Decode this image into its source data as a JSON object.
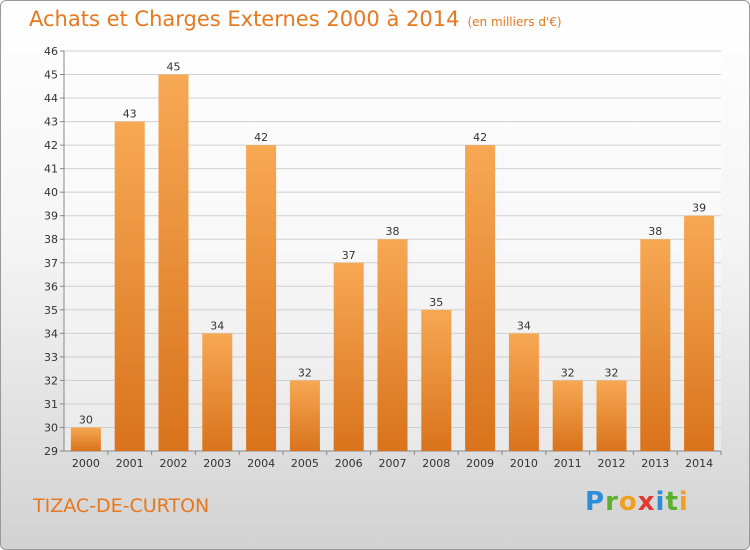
{
  "title": "Achats et Charges Externes 2000 à 2014",
  "unit_note": "(en milliers d'€)",
  "commune": "TIZAC-DE-CURTON",
  "brand": {
    "letters": [
      "P",
      "r",
      "o",
      "x",
      "i",
      "t",
      "i"
    ],
    "colors": [
      "#2a8fd8",
      "#5bb030",
      "#f0a020",
      "#e03a30",
      "#2a8fd8",
      "#5bb030",
      "#f0a020"
    ]
  },
  "colors": {
    "accent": "#e8781e",
    "bar_light": "#f7a853",
    "bar_dark": "#d9731c"
  },
  "chart_data": {
    "type": "bar",
    "categories": [
      "2000",
      "2001",
      "2002",
      "2003",
      "2004",
      "2005",
      "2006",
      "2007",
      "2008",
      "2009",
      "2010",
      "2011",
      "2012",
      "2013",
      "2014"
    ],
    "values": [
      30,
      43,
      45,
      34,
      42,
      32,
      37,
      38,
      35,
      42,
      34,
      32,
      32,
      38,
      39
    ],
    "yticks": [
      29,
      30,
      31,
      32,
      33,
      34,
      35,
      36,
      37,
      38,
      39,
      40,
      41,
      42,
      43,
      44,
      45,
      46
    ],
    "ylim": [
      29,
      46
    ],
    "grid": true,
    "data_labels": true
  }
}
